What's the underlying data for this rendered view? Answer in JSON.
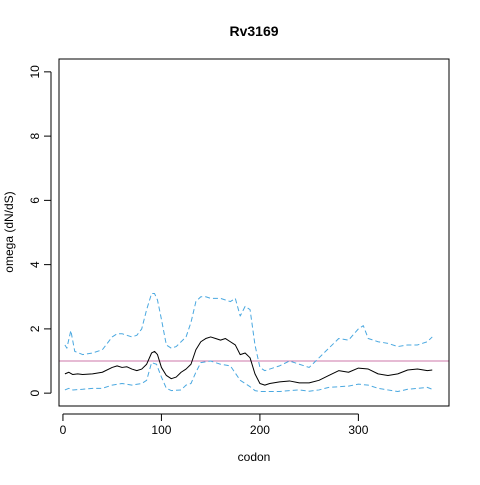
{
  "chart_data": {
    "type": "line",
    "title": "Rv3169",
    "xlabel": "codon",
    "ylabel": "omega (dN/dS)",
    "xlim": [
      -4,
      392
    ],
    "ylim": [
      -0.4,
      10.4
    ],
    "x_ticks": [
      0,
      100,
      200,
      300
    ],
    "y_ticks": [
      0,
      2,
      4,
      6,
      8,
      10
    ],
    "reference_line": {
      "y": 1,
      "color": "#cc77aa"
    },
    "colors": {
      "estimate": "#000000",
      "bounds": "#4aa8e0"
    },
    "series": [
      {
        "role": "estimate",
        "style": "solid",
        "x": [
          2,
          6,
          10,
          15,
          20,
          30,
          40,
          50,
          55,
          60,
          65,
          70,
          75,
          80,
          85,
          90,
          93,
          96,
          100,
          105,
          110,
          115,
          120,
          125,
          130,
          135,
          140,
          145,
          150,
          155,
          160,
          165,
          170,
          175,
          180,
          185,
          190,
          195,
          200,
          205,
          210,
          220,
          230,
          240,
          250,
          260,
          270,
          280,
          290,
          300,
          310,
          320,
          330,
          340,
          350,
          360,
          370,
          375
        ],
        "y": [
          0.6,
          0.65,
          0.58,
          0.6,
          0.58,
          0.6,
          0.65,
          0.8,
          0.85,
          0.8,
          0.82,
          0.75,
          0.7,
          0.75,
          0.9,
          1.25,
          1.3,
          1.2,
          0.8,
          0.55,
          0.45,
          0.5,
          0.65,
          0.75,
          0.9,
          1.35,
          1.6,
          1.7,
          1.75,
          1.7,
          1.65,
          1.7,
          1.6,
          1.5,
          1.2,
          1.25,
          1.1,
          0.6,
          0.3,
          0.25,
          0.3,
          0.35,
          0.38,
          0.32,
          0.32,
          0.4,
          0.55,
          0.7,
          0.65,
          0.78,
          0.75,
          0.6,
          0.55,
          0.6,
          0.72,
          0.75,
          0.7,
          0.72
        ]
      },
      {
        "role": "upper bound",
        "style": "dashed",
        "x": [
          2,
          4,
          8,
          12,
          20,
          30,
          40,
          50,
          55,
          60,
          65,
          70,
          75,
          80,
          85,
          90,
          93,
          96,
          100,
          105,
          110,
          115,
          120,
          125,
          130,
          135,
          140,
          145,
          150,
          155,
          160,
          165,
          170,
          175,
          180,
          185,
          190,
          195,
          200,
          205,
          210,
          220,
          230,
          240,
          250,
          260,
          270,
          280,
          290,
          300,
          305,
          310,
          320,
          330,
          340,
          350,
          360,
          370,
          375
        ],
        "y": [
          1.5,
          1.4,
          1.95,
          1.3,
          1.2,
          1.25,
          1.35,
          1.75,
          1.85,
          1.85,
          1.8,
          1.75,
          1.8,
          2.0,
          2.6,
          3.1,
          3.1,
          2.9,
          2.3,
          1.5,
          1.4,
          1.45,
          1.6,
          1.75,
          2.2,
          2.85,
          3.0,
          3.0,
          2.95,
          2.95,
          2.95,
          2.9,
          2.85,
          2.95,
          2.4,
          2.7,
          2.6,
          1.5,
          0.8,
          0.7,
          0.75,
          0.85,
          1.0,
          0.9,
          0.8,
          1.1,
          1.4,
          1.7,
          1.65,
          2.0,
          2.1,
          1.7,
          1.6,
          1.55,
          1.45,
          1.5,
          1.5,
          1.6,
          1.75
        ]
      },
      {
        "role": "lower bound",
        "style": "dashed",
        "x": [
          2,
          6,
          10,
          20,
          30,
          40,
          50,
          60,
          70,
          80,
          85,
          90,
          95,
          100,
          105,
          110,
          120,
          125,
          130,
          135,
          140,
          150,
          160,
          170,
          180,
          185,
          190,
          195,
          200,
          210,
          220,
          230,
          240,
          250,
          260,
          270,
          280,
          290,
          300,
          310,
          320,
          330,
          340,
          350,
          360,
          370,
          375
        ],
        "y": [
          0.1,
          0.15,
          0.1,
          0.12,
          0.15,
          0.15,
          0.25,
          0.3,
          0.25,
          0.3,
          0.4,
          0.95,
          0.9,
          0.5,
          0.15,
          0.08,
          0.1,
          0.25,
          0.3,
          0.65,
          0.95,
          1.0,
          0.9,
          0.85,
          0.4,
          0.3,
          0.2,
          0.08,
          0.05,
          0.05,
          0.05,
          0.08,
          0.1,
          0.06,
          0.1,
          0.18,
          0.2,
          0.22,
          0.28,
          0.25,
          0.15,
          0.1,
          0.05,
          0.12,
          0.15,
          0.18,
          0.12
        ]
      }
    ]
  }
}
